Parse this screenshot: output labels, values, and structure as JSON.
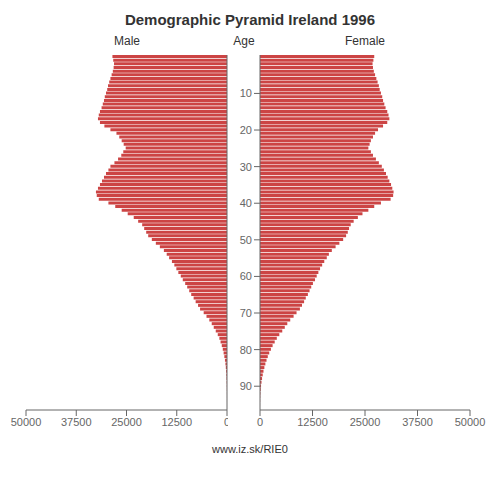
{
  "chart_data": [
    {
      "type": "bar",
      "orientation": "horizontal",
      "title": "Demographic Pyramid Ireland 1996",
      "annotations": [
        "www.iz.sk/RIE0"
      ],
      "xlabel": "Male",
      "color": "#cc4444",
      "tick_labels": "x",
      "xlim": [
        50000,
        0
      ],
      "xticks": [
        50000,
        37500,
        25000,
        12500,
        0
      ],
      "ylim": [
        -0.5,
        96.5
      ],
      "yticks": [
        10,
        20,
        30,
        40,
        50,
        60,
        70,
        80,
        90
      ],
      "y": [
        0,
        1,
        2,
        3,
        4,
        5,
        6,
        7,
        8,
        9,
        10,
        11,
        12,
        13,
        14,
        15,
        16,
        17,
        18,
        19,
        20,
        21,
        22,
        23,
        24,
        25,
        26,
        27,
        28,
        29,
        30,
        31,
        32,
        33,
        34,
        35,
        36,
        37,
        38,
        39,
        40,
        41,
        42,
        43,
        44,
        45,
        46,
        47,
        48,
        49,
        50,
        51,
        52,
        53,
        54,
        55,
        56,
        57,
        58,
        59,
        60,
        61,
        62,
        63,
        64,
        65,
        66,
        67,
        68,
        69,
        70,
        71,
        72,
        73,
        74,
        75,
        76,
        77,
        78,
        79,
        80,
        81,
        82,
        83,
        84,
        85,
        86,
        87,
        88,
        89,
        90,
        91,
        92,
        93,
        94,
        95
      ],
      "values": [
        28500,
        28300,
        28100,
        28200,
        28400,
        28700,
        29000,
        29300,
        29600,
        29800,
        30100,
        30400,
        30600,
        30900,
        31200,
        31600,
        31900,
        32100,
        31600,
        30500,
        29000,
        27500,
        26800,
        26200,
        25700,
        25200,
        25800,
        26300,
        27100,
        28000,
        29000,
        29500,
        30100,
        30600,
        31100,
        31600,
        32100,
        32600,
        32400,
        31900,
        29500,
        27800,
        26200,
        24700,
        23200,
        22100,
        21100,
        20600,
        20100,
        19600,
        18700,
        17700,
        16700,
        15700,
        15000,
        14400,
        13700,
        13100,
        12600,
        12100,
        11500,
        11000,
        10400,
        9900,
        9400,
        8900,
        8300,
        7800,
        7200,
        6700,
        5800,
        5100,
        4400,
        3800,
        3300,
        2800,
        2300,
        1900,
        1600,
        1300,
        1050,
        840,
        660,
        510,
        390,
        295,
        220,
        160,
        110,
        75,
        48,
        30,
        17,
        9,
        5,
        2
      ]
    },
    {
      "type": "bar",
      "orientation": "horizontal",
      "xlabel": "Female",
      "ylabel": "Age",
      "color": "#cc4444",
      "xlim": [
        0,
        50000
      ],
      "xticks": [
        0,
        12500,
        25000,
        37500,
        50000
      ],
      "ylim": [
        -0.5,
        96.5
      ],
      "yticks": [
        10,
        20,
        30,
        40,
        50,
        60,
        70,
        80,
        90
      ],
      "y": [
        0,
        1,
        2,
        3,
        4,
        5,
        6,
        7,
        8,
        9,
        10,
        11,
        12,
        13,
        14,
        15,
        16,
        17,
        18,
        19,
        20,
        21,
        22,
        23,
        24,
        25,
        26,
        27,
        28,
        29,
        30,
        31,
        32,
        33,
        34,
        35,
        36,
        37,
        38,
        39,
        40,
        41,
        42,
        43,
        44,
        45,
        46,
        47,
        48,
        49,
        50,
        51,
        52,
        53,
        54,
        55,
        56,
        57,
        58,
        59,
        60,
        61,
        62,
        63,
        64,
        65,
        66,
        67,
        68,
        69,
        70,
        71,
        72,
        73,
        74,
        75,
        76,
        77,
        78,
        79,
        80,
        81,
        82,
        83,
        84,
        85,
        86,
        87,
        88,
        89,
        90,
        91,
        92,
        93,
        94,
        95
      ],
      "values": [
        27200,
        27000,
        26800,
        26900,
        27100,
        27400,
        27700,
        28000,
        28300,
        28500,
        28800,
        29100,
        29300,
        29600,
        29900,
        30300,
        30600,
        30800,
        30300,
        29300,
        28100,
        27400,
        26900,
        26400,
        26100,
        25800,
        26400,
        26900,
        27600,
        28300,
        29000,
        29500,
        30000,
        30400,
        30800,
        31200,
        31500,
        31800,
        31700,
        31100,
        28800,
        27200,
        25800,
        24400,
        23300,
        22300,
        21600,
        21200,
        20900,
        20500,
        19800,
        18900,
        18000,
        17100,
        16400,
        15900,
        15300,
        14800,
        14300,
        13900,
        13500,
        13100,
        12600,
        12200,
        11800,
        11400,
        10900,
        10500,
        10000,
        9500,
        8700,
        8000,
        7200,
        6500,
        5900,
        5300,
        4600,
        4000,
        3500,
        3000,
        2600,
        2200,
        1850,
        1550,
        1280,
        1040,
        830,
        650,
        490,
        360,
        250,
        160,
        95,
        55,
        28,
        12
      ]
    }
  ]
}
